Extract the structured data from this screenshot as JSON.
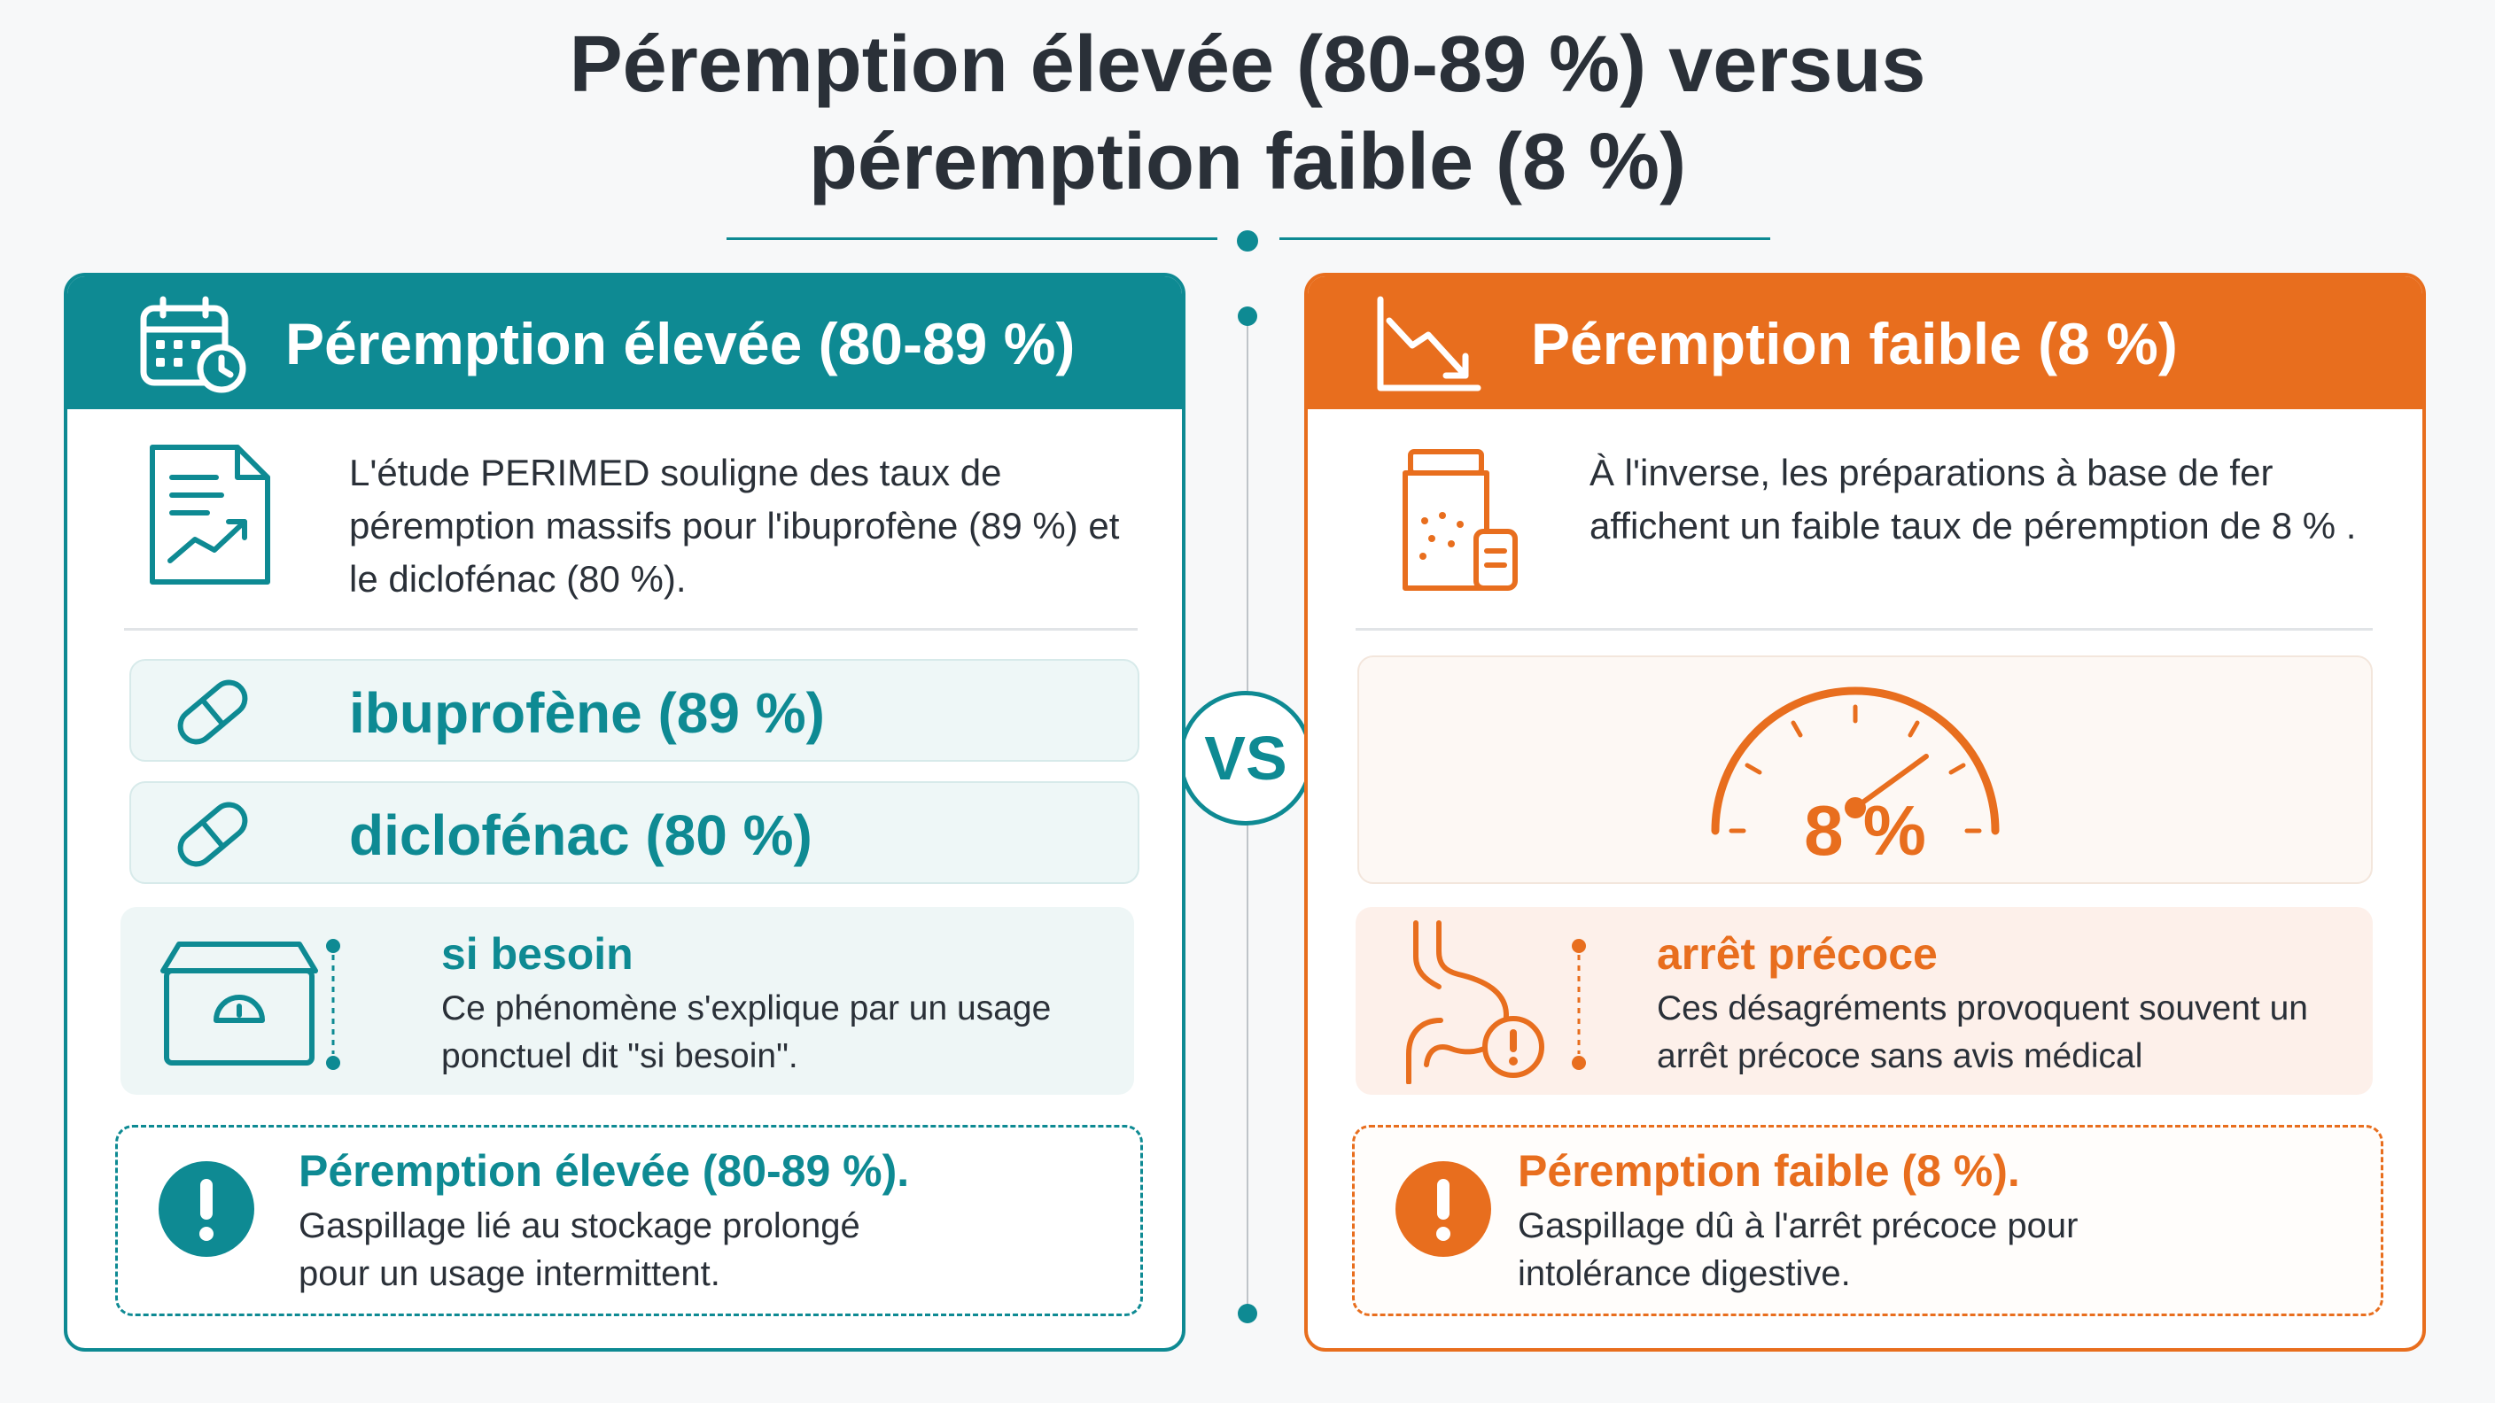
{
  "title": {
    "line1": "Péremption élevée (80-89 %) versus",
    "line2": "péremption faible (8 %)"
  },
  "vs_label": "VS",
  "colors": {
    "teal": "#0e8a93",
    "orange": "#e86e1e"
  },
  "left": {
    "header_icon": "calendar-clock-icon",
    "header_title": "Péremption élevée (80-89 %)",
    "intro_icon": "report-chart-icon",
    "intro_text": "L'étude PERIMED souligne des taux de péremption massifs pour l'ibuprofène (89 %) et le diclofénac (80 %).",
    "drugs": [
      {
        "icon": "pill-capsule-icon",
        "label": "ibuprofène (89 %)"
      },
      {
        "icon": "pill-capsule-icon",
        "label": "diclofénac (80 %)"
      }
    ],
    "info": {
      "icon": "medicine-cabinet-icon",
      "title": "si besoin",
      "text": "Ce phénomène s'explique par un usage ponctuel dit \"si besoin\"."
    },
    "note": {
      "icon": "exclamation-icon",
      "title": "Péremption élevée (80-89 %).",
      "text": "Gaspillage lié au stockage prolongé pour un usage intermittent."
    }
  },
  "right": {
    "header_icon": "trend-down-icon",
    "header_title": "Péremption faible (8 %)",
    "intro_icon": "medicine-jar-icon",
    "intro_text": "À l'inverse, les préparations à base de fer affichent un faible taux de péremption de 8 % .",
    "gauge": {
      "icon": "gauge-icon",
      "value_label": "8 %",
      "value": 8
    },
    "info": {
      "icon": "stomach-warning-icon",
      "title": "arrêt précoce",
      "text": "Ces désagréments provoquent souvent un arrêt précoce sans avis médical"
    },
    "note": {
      "icon": "exclamation-icon",
      "title": "Péremption faible (8 %).",
      "text": "Gaspillage dû à l'arrêt précoce pour intolérance digestive."
    }
  }
}
